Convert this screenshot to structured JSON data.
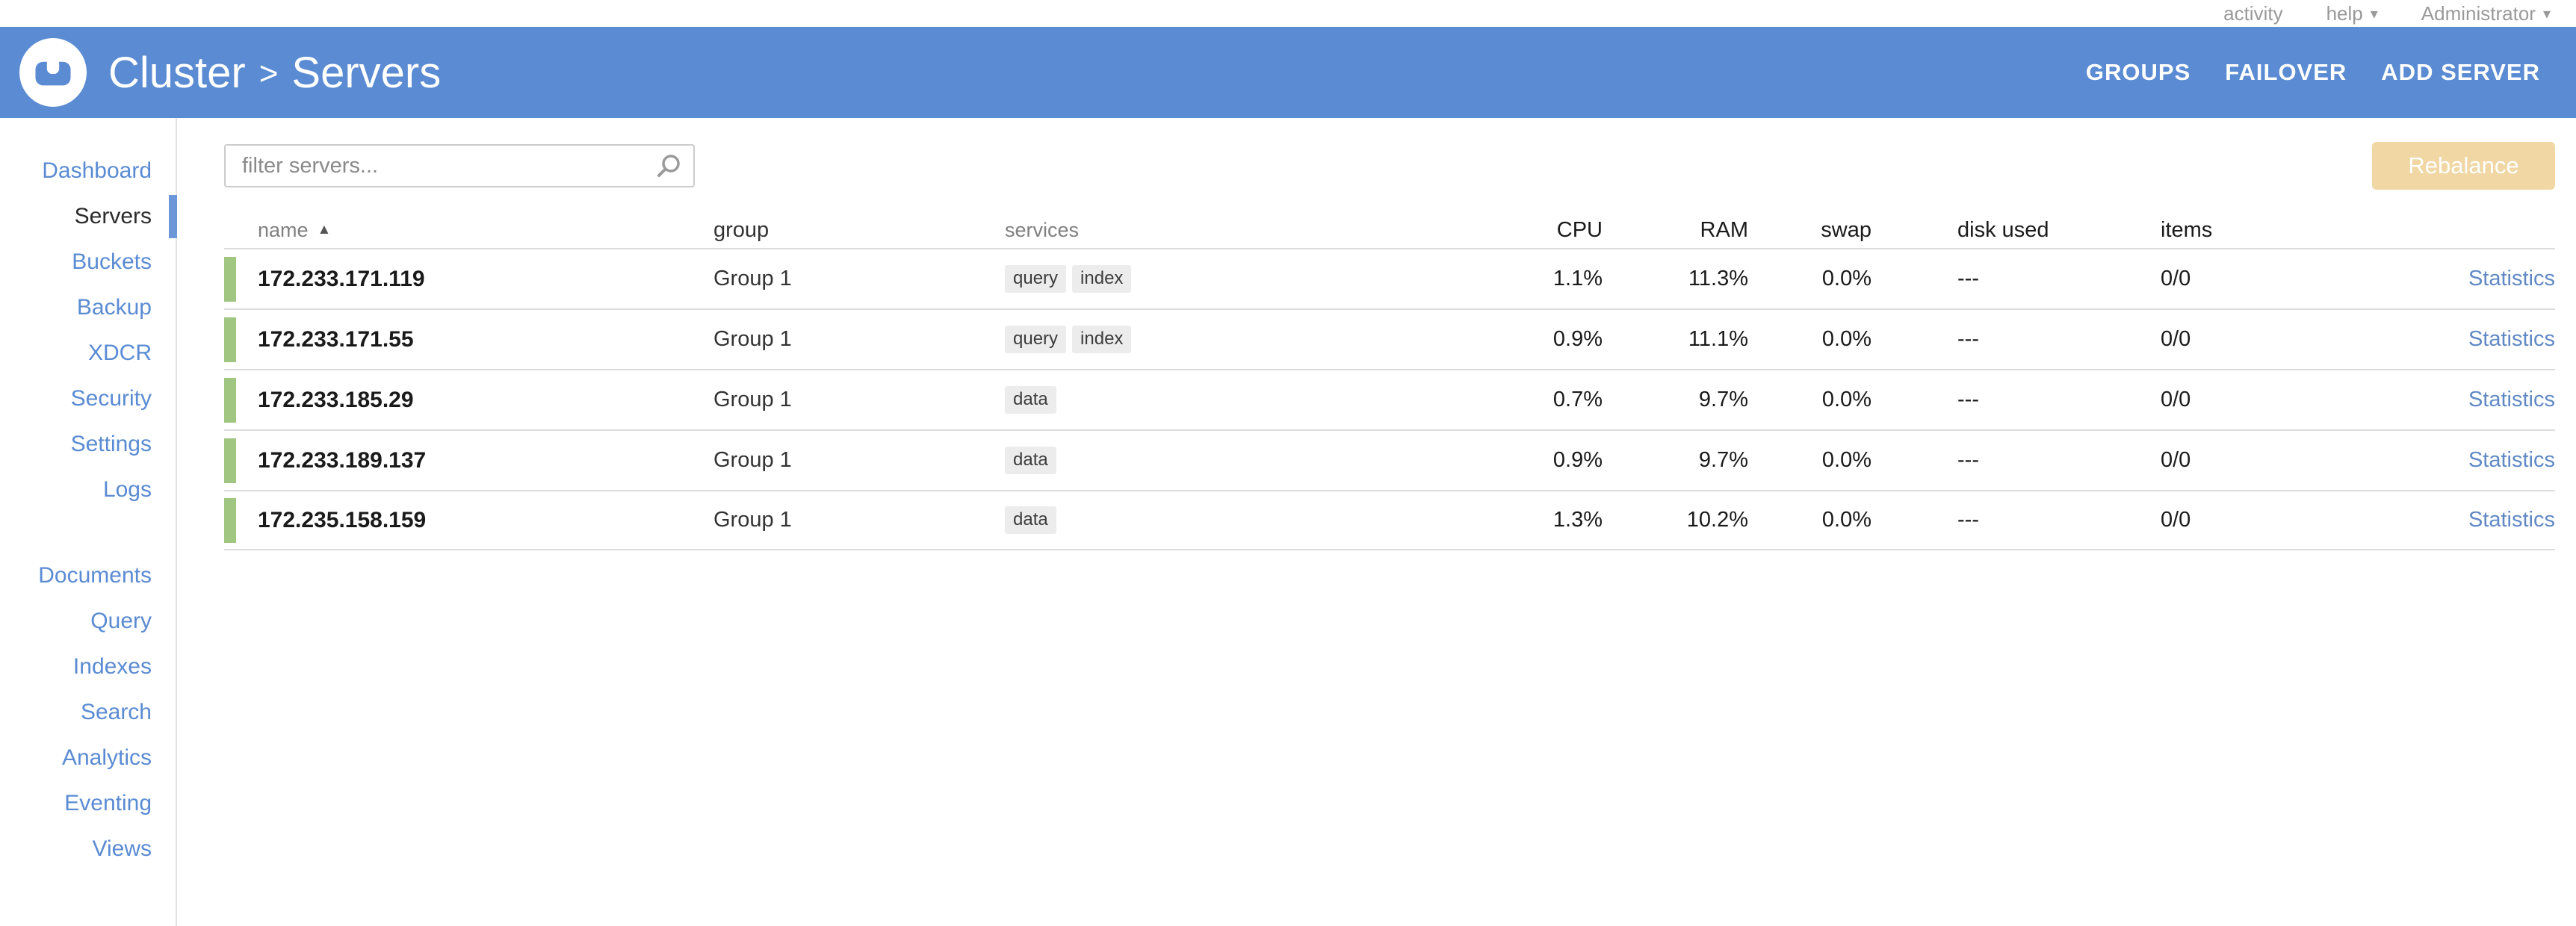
{
  "colors": {
    "header_blue": "#5a8bd3",
    "link_blue": "#5a8bd3",
    "active_bar_blue": "#6b96d8",
    "row_green": "#a0c681",
    "rebalance_tan": "#f0d7a4",
    "statistics_blue": "#6089c5"
  },
  "utility_bar": {
    "activity_label": "activity",
    "help_label": "help",
    "user_label": "Administrator",
    "caret": "▾"
  },
  "header": {
    "breadcrumb_root": "Cluster",
    "breadcrumb_separator": ">",
    "breadcrumb_page": "Servers",
    "nav": [
      {
        "label": "GROUPS"
      },
      {
        "label": "FAILOVER"
      },
      {
        "label": "ADD SERVER"
      }
    ]
  },
  "sidebar": {
    "groups": [
      {
        "items": [
          {
            "label": "Dashboard",
            "active": false
          },
          {
            "label": "Servers",
            "active": true
          },
          {
            "label": "Buckets",
            "active": false
          },
          {
            "label": "Backup",
            "active": false
          },
          {
            "label": "XDCR",
            "active": false
          },
          {
            "label": "Security",
            "active": false
          },
          {
            "label": "Settings",
            "active": false
          },
          {
            "label": "Logs",
            "active": false
          }
        ]
      },
      {
        "items": [
          {
            "label": "Documents",
            "active": false
          },
          {
            "label": "Query",
            "active": false
          },
          {
            "label": "Indexes",
            "active": false
          },
          {
            "label": "Search",
            "active": false
          },
          {
            "label": "Analytics",
            "active": false
          },
          {
            "label": "Eventing",
            "active": false
          },
          {
            "label": "Views",
            "active": false
          }
        ]
      }
    ]
  },
  "main": {
    "filter_placeholder": "filter servers...",
    "rebalance_label": "Rebalance",
    "table": {
      "sort_arrow": "▲",
      "columns": [
        "name",
        "group",
        "services",
        "CPU",
        "RAM",
        "swap",
        "disk used",
        "items"
      ],
      "rows": [
        {
          "name": "172.233.171.119",
          "group": "Group 1",
          "services": [
            "query",
            "index"
          ],
          "cpu": "1.1%",
          "ram": "11.3%",
          "swap": "0.0%",
          "disk_used": "---",
          "items": "0/0",
          "action": "Statistics"
        },
        {
          "name": "172.233.171.55",
          "group": "Group 1",
          "services": [
            "query",
            "index"
          ],
          "cpu": "0.9%",
          "ram": "11.1%",
          "swap": "0.0%",
          "disk_used": "---",
          "items": "0/0",
          "action": "Statistics"
        },
        {
          "name": "172.233.185.29",
          "group": "Group 1",
          "services": [
            "data"
          ],
          "cpu": "0.7%",
          "ram": "9.7%",
          "swap": "0.0%",
          "disk_used": "---",
          "items": "0/0",
          "action": "Statistics"
        },
        {
          "name": "172.233.189.137",
          "group": "Group 1",
          "services": [
            "data"
          ],
          "cpu": "0.9%",
          "ram": "9.7%",
          "swap": "0.0%",
          "disk_used": "---",
          "items": "0/0",
          "action": "Statistics"
        },
        {
          "name": "172.235.158.159",
          "group": "Group 1",
          "services": [
            "data"
          ],
          "cpu": "1.3%",
          "ram": "10.2%",
          "swap": "0.0%",
          "disk_used": "---",
          "items": "0/0",
          "action": "Statistics"
        }
      ]
    }
  }
}
